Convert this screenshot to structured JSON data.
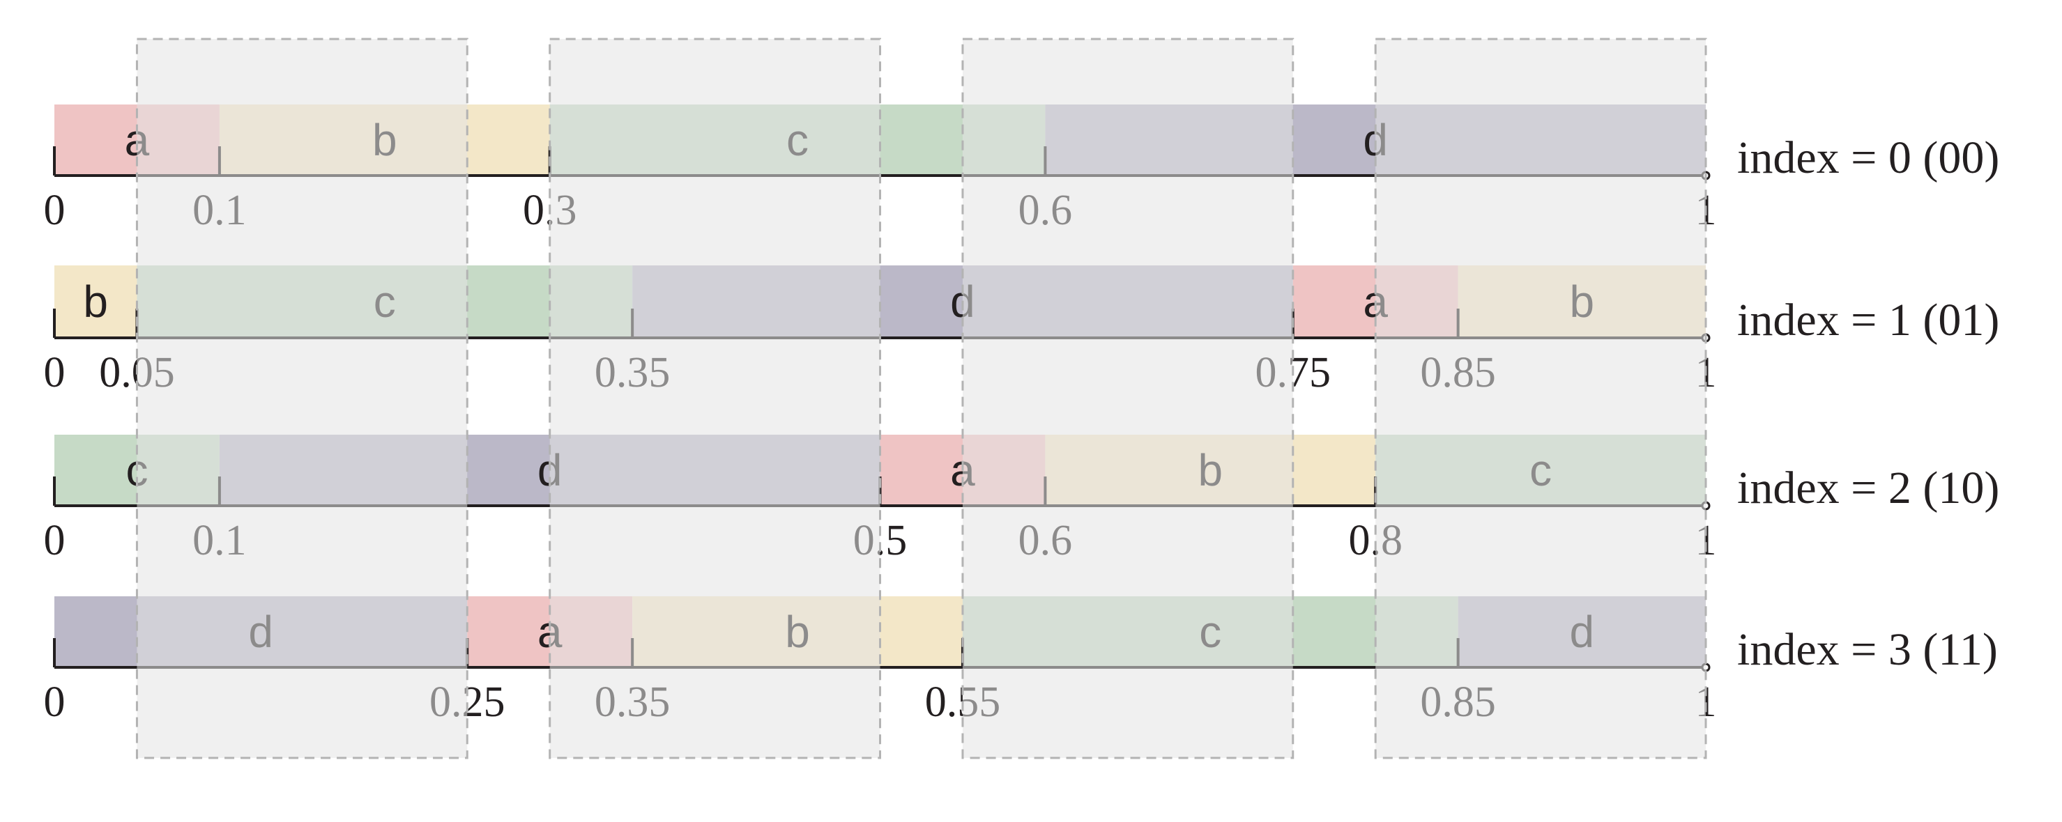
{
  "colors": {
    "a": "#efc4c4",
    "b": "#f3e7c8",
    "c": "#c6dac6",
    "d": "#bbb8c8",
    "column_shade": "#e4e4e4",
    "column_border": "#b3b3b3",
    "axis": "#231f20"
  },
  "shaded_columns": [
    {
      "from": 0.05,
      "to": 0.25
    },
    {
      "from": 0.3,
      "to": 0.5
    },
    {
      "from": 0.55,
      "to": 0.75
    },
    {
      "from": 0.8,
      "to": 1.0
    }
  ],
  "rows": [
    {
      "label": "index = 0 (00)",
      "segments": [
        {
          "symbol": "a",
          "from": 0,
          "to": 0.1
        },
        {
          "symbol": "b",
          "from": 0.1,
          "to": 0.3
        },
        {
          "symbol": "c",
          "from": 0.3,
          "to": 0.6
        },
        {
          "symbol": "d",
          "from": 0.6,
          "to": 1
        }
      ],
      "ticks": [
        {
          "value": 0,
          "label": "0"
        },
        {
          "value": 0.1,
          "label": "0.1"
        },
        {
          "value": 0.3,
          "label": "0.3"
        },
        {
          "value": 0.6,
          "label": "0.6"
        },
        {
          "value": 1,
          "label": "1"
        }
      ]
    },
    {
      "label": "index = 1 (01)",
      "segments": [
        {
          "symbol": "b",
          "from": 0,
          "to": 0.05
        },
        {
          "symbol": "c",
          "from": 0.05,
          "to": 0.35
        },
        {
          "symbol": "d",
          "from": 0.35,
          "to": 0.75
        },
        {
          "symbol": "a",
          "from": 0.75,
          "to": 0.85
        },
        {
          "symbol": "b",
          "from": 0.85,
          "to": 1
        }
      ],
      "ticks": [
        {
          "value": 0,
          "label": "0"
        },
        {
          "value": 0.05,
          "label": "0.05"
        },
        {
          "value": 0.35,
          "label": "0.35"
        },
        {
          "value": 0.75,
          "label": "0.75"
        },
        {
          "value": 0.85,
          "label": "0.85"
        },
        {
          "value": 1,
          "label": "1"
        }
      ]
    },
    {
      "label": "index = 2 (10)",
      "segments": [
        {
          "symbol": "c",
          "from": 0,
          "to": 0.1
        },
        {
          "symbol": "d",
          "from": 0.1,
          "to": 0.5
        },
        {
          "symbol": "a",
          "from": 0.5,
          "to": 0.6
        },
        {
          "symbol": "b",
          "from": 0.6,
          "to": 0.8
        },
        {
          "symbol": "c",
          "from": 0.8,
          "to": 1
        }
      ],
      "ticks": [
        {
          "value": 0,
          "label": "0"
        },
        {
          "value": 0.1,
          "label": "0.1"
        },
        {
          "value": 0.5,
          "label": "0.5"
        },
        {
          "value": 0.6,
          "label": "0.6"
        },
        {
          "value": 0.8,
          "label": "0.8"
        },
        {
          "value": 1,
          "label": "1"
        }
      ]
    },
    {
      "label": "index = 3 (11)",
      "segments": [
        {
          "symbol": "d",
          "from": 0,
          "to": 0.25
        },
        {
          "symbol": "a",
          "from": 0.25,
          "to": 0.35
        },
        {
          "symbol": "b",
          "from": 0.35,
          "to": 0.55
        },
        {
          "symbol": "c",
          "from": 0.55,
          "to": 0.85
        },
        {
          "symbol": "d",
          "from": 0.85,
          "to": 1
        }
      ],
      "ticks": [
        {
          "value": 0,
          "label": "0"
        },
        {
          "value": 0.25,
          "label": "0.25"
        },
        {
          "value": 0.35,
          "label": "0.35"
        },
        {
          "value": 0.55,
          "label": "0.55"
        },
        {
          "value": 0.85,
          "label": "0.85"
        },
        {
          "value": 1,
          "label": "1"
        }
      ]
    }
  ]
}
